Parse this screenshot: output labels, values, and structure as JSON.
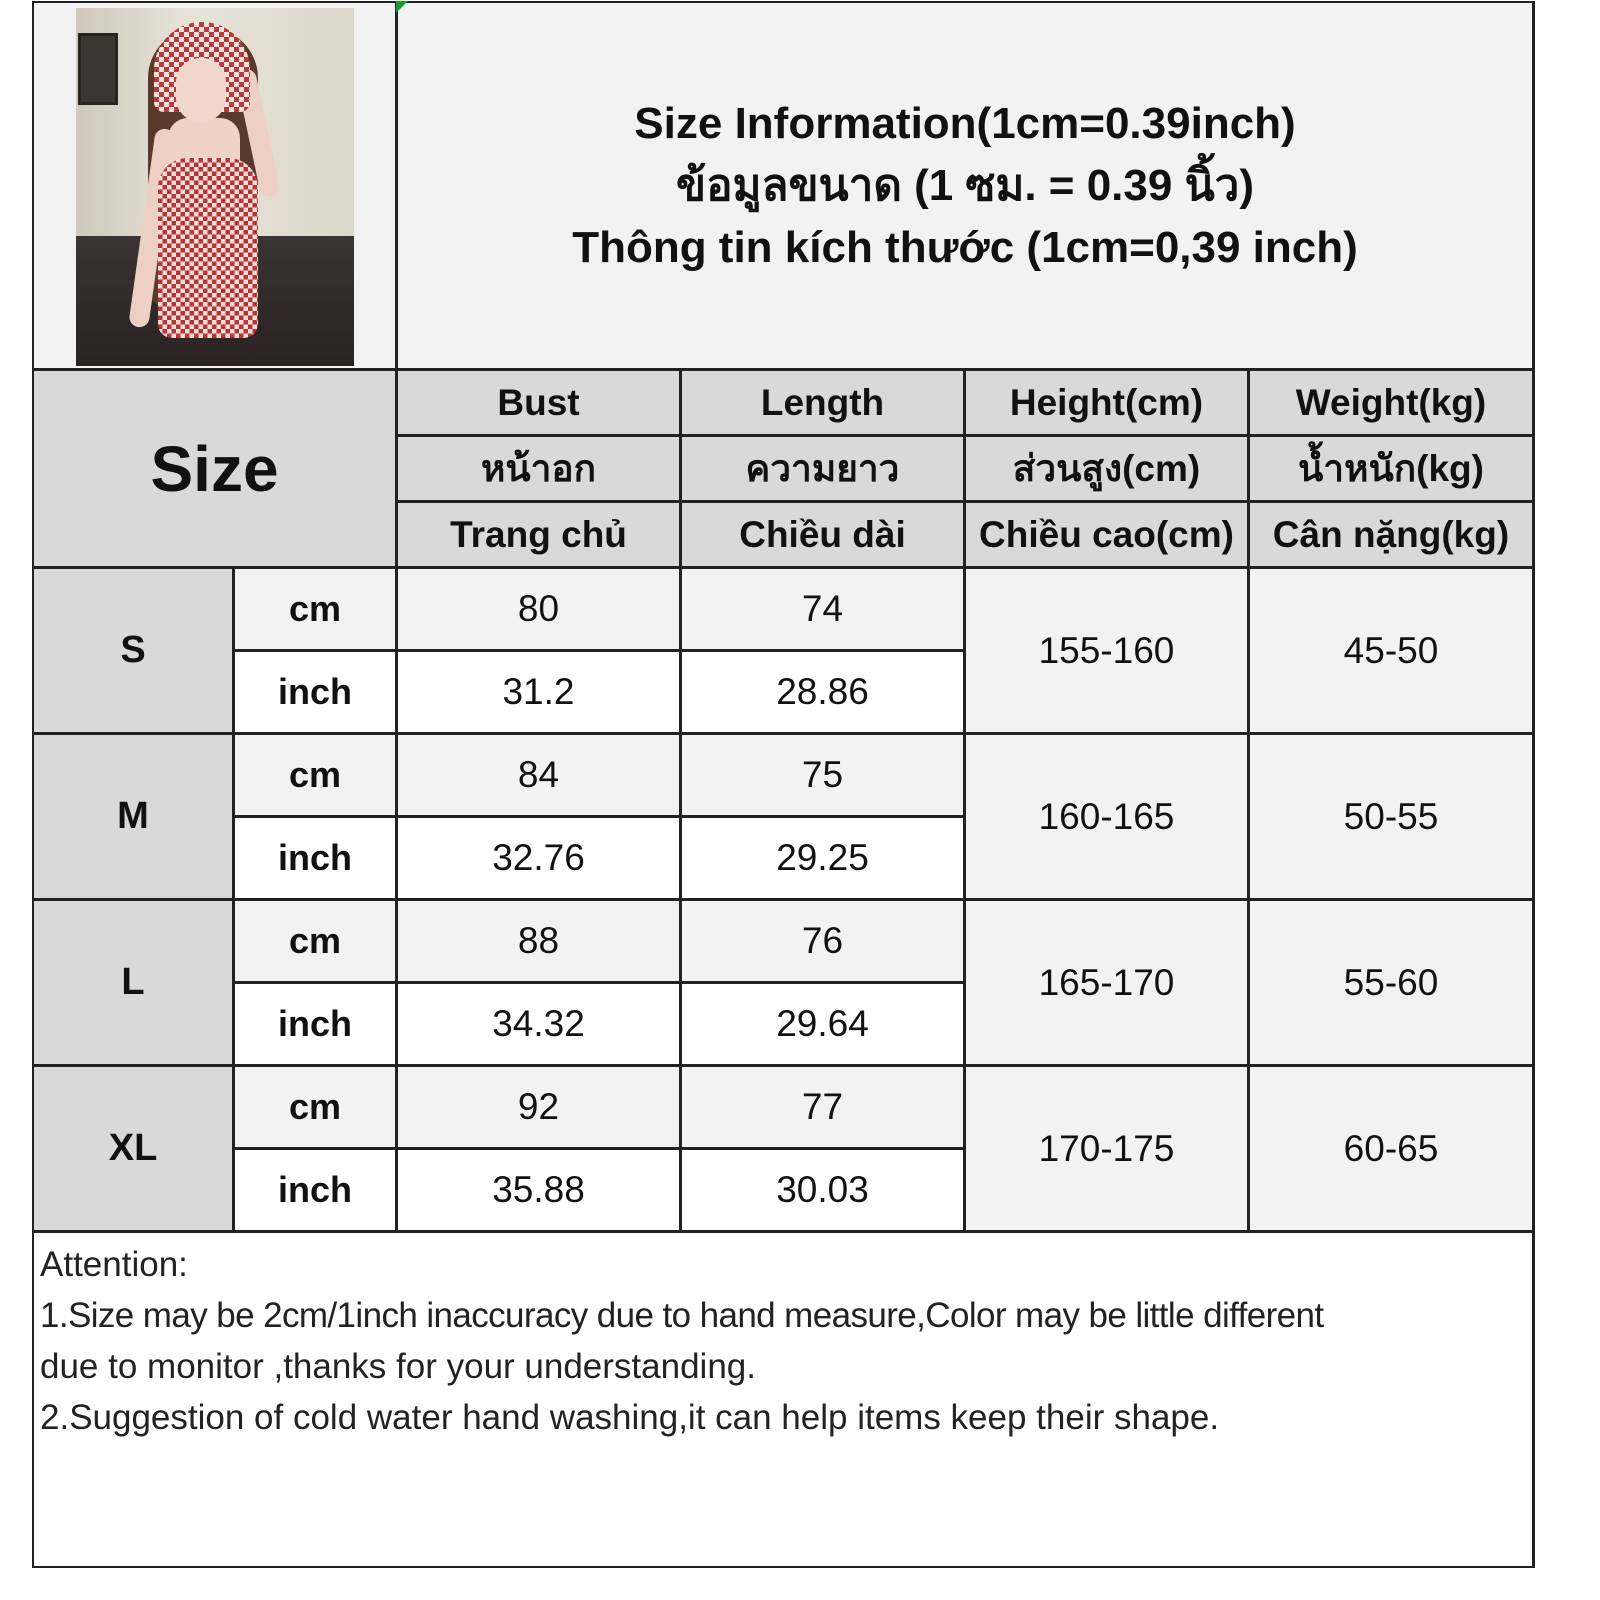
{
  "title": {
    "en": "Size Information(1cm=0.39inch)",
    "th": "ข้อมูลขนาด (1 ซม. = 0.39 นิ้ว)",
    "vi": "Thông tin kích thước (1cm=0,39 inch)"
  },
  "size_header": "Size",
  "columns": [
    {
      "en": "Bust",
      "th": "หน้าอก",
      "vi": "Trang chủ"
    },
    {
      "en": "Length",
      "th": "ความยาว",
      "vi": "Chiều dài"
    },
    {
      "en": "Height(cm)",
      "th": "ส่วนสูง(cm)",
      "vi": "Chiều cao(cm)"
    },
    {
      "en": "Weight(kg)",
      "th": "น้ำหนัก(kg)",
      "vi": "Cân nặng(kg)"
    }
  ],
  "units": {
    "cm": "cm",
    "inch": "inch"
  },
  "rows": [
    {
      "size": "S",
      "bust_cm": "80",
      "bust_inch": "31.2",
      "length_cm": "74",
      "length_inch": "28.86",
      "height": "155-160",
      "weight": "45-50"
    },
    {
      "size": "M",
      "bust_cm": "84",
      "bust_inch": "32.76",
      "length_cm": "75",
      "length_inch": "29.25",
      "height": "160-165",
      "weight": "50-55"
    },
    {
      "size": "L",
      "bust_cm": "88",
      "bust_inch": "34.32",
      "length_cm": "76",
      "length_inch": "29.64",
      "height": "165-170",
      "weight": "55-60"
    },
    {
      "size": "XL",
      "bust_cm": "92",
      "bust_inch": "35.88",
      "length_cm": "77",
      "length_inch": "30.03",
      "height": "170-175",
      "weight": "60-65"
    }
  ],
  "notes": {
    "heading": "Attention:",
    "line1a": "1.Size may be 2cm/1inch inaccuracy due to hand measure,Color may be little different",
    "line1b": "due to monitor ,thanks for your understanding.",
    "line2": "2.Suggestion of cold water hand washing,it can help items keep their shape."
  },
  "colors": {
    "header_gray": "#d9d9d9",
    "light_row": "#f2f2f2",
    "border": "#222222"
  }
}
